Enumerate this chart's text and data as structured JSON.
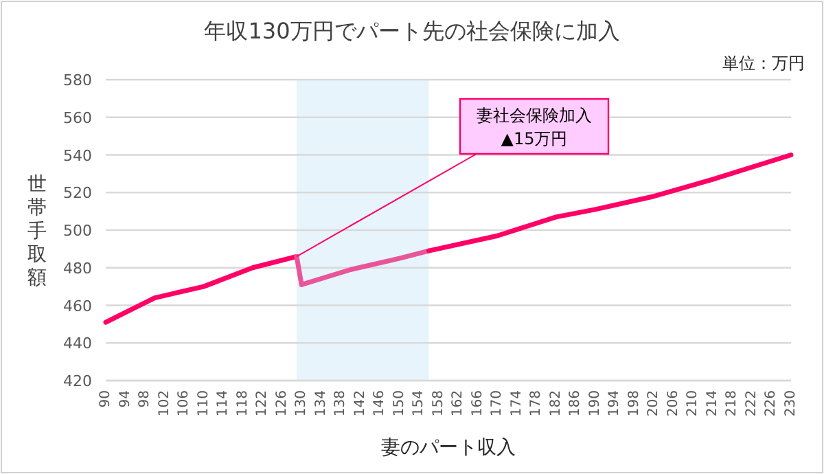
{
  "chart_data": {
    "type": "line",
    "title": "年収130万円でパート先の社会保険に加入",
    "xlabel": "妻のパート収入",
    "ylabel": "世帯手取額",
    "annotations": [
      "単位：万円",
      {
        "text": "妻社会保険加入\n▲15万円",
        "x": 129,
        "y": 486
      }
    ],
    "series": [
      {
        "color": "#ff0066",
        "x": [
          90,
          100,
          110,
          120,
          129
        ],
        "values": [
          451,
          464,
          470,
          480,
          486
        ]
      },
      {
        "color": "#e8559a",
        "x": [
          129,
          130,
          140,
          150,
          156
        ],
        "values": [
          486,
          471,
          479,
          485,
          489
        ]
      },
      {
        "color": "#ff0066",
        "x": [
          156,
          170,
          182,
          190,
          202,
          214,
          230
        ],
        "values": [
          489,
          497,
          507,
          511,
          518,
          527,
          540
        ]
      }
    ],
    "bands": [
      {
        "axis": "x",
        "from": 129,
        "to": 156,
        "color": "#e8f4fc"
      }
    ],
    "xlim": [
      90,
      230
    ],
    "xticks": [
      90,
      94,
      98,
      102,
      106,
      110,
      114,
      118,
      122,
      126,
      130,
      134,
      138,
      142,
      146,
      150,
      154,
      158,
      162,
      166,
      170,
      174,
      178,
      182,
      186,
      190,
      194,
      198,
      202,
      206,
      210,
      214,
      218,
      222,
      226,
      230
    ],
    "ylim": [
      420,
      580
    ],
    "yticks": [
      420,
      440,
      460,
      480,
      500,
      520,
      540,
      560,
      580
    ],
    "grid": "y",
    "marker": "none",
    "line_style": "solid"
  }
}
